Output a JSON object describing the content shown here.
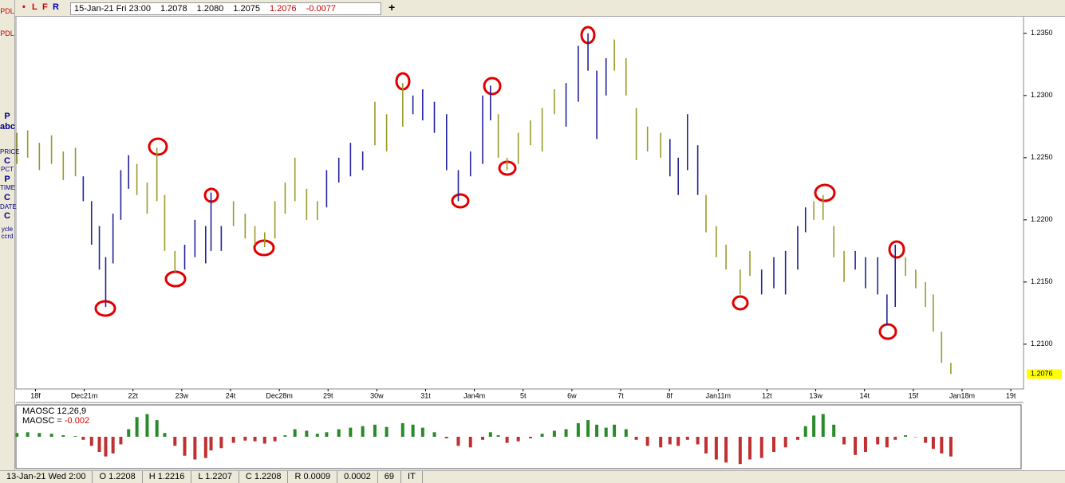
{
  "header": {
    "flags": [
      "L",
      "F",
      "R"
    ],
    "date": "15-Jan-21 Fri 23:00",
    "open": "1.2078",
    "high": "1.2080",
    "low": "1.2075",
    "close": "1.2076",
    "change": "-0.0077",
    "add": "+"
  },
  "toolbar": [
    "PDL",
    "PDL",
    "P",
    "abc",
    "PRICE",
    "C",
    "PCT",
    "P",
    "TIME",
    "C",
    "DATE",
    "C",
    "ycle",
    "ccrd"
  ],
  "status": [
    "13-Jan-21 Wed 2:00",
    "O 1.2208",
    "H 1.2216",
    "L 1.2207",
    "C 1.2208",
    "R 0.0009",
    "0.0002",
    "69",
    "IT"
  ],
  "chart_data": {
    "type": "ohlc",
    "categories": [
      "18f",
      "Dec21m",
      "22t",
      "23w",
      "24t",
      "Dec28m",
      "29t",
      "30w",
      "31t",
      "Jan4m",
      "5t",
      "6w",
      "7t",
      "8f",
      "Jan11m",
      "12t",
      "13w",
      "14t",
      "15f",
      "Jan18m",
      "19t"
    ],
    "xlim": [
      -0.4,
      20.26
    ],
    "ylim": [
      1.2064,
      1.2364
    ],
    "yticks": [
      {
        "value": 1.235,
        "label": "1.2350"
      },
      {
        "value": 1.23,
        "label": "1.2300"
      },
      {
        "value": 1.225,
        "label": "1.2250"
      },
      {
        "value": 1.22,
        "label": "1.2200"
      },
      {
        "value": 1.215,
        "label": "1.2150"
      },
      {
        "value": 1.21,
        "label": "1.2100"
      }
    ],
    "last_price": 1.2076,
    "last_price_color": "#ffff00",
    "x": [
      -0.38,
      -0.16,
      0.08,
      0.33,
      0.57,
      0.82,
      0.98,
      1.15,
      1.31,
      1.44,
      1.59,
      1.75,
      1.91,
      2.08,
      2.29,
      2.49,
      2.65,
      2.86,
      3.06,
      3.27,
      3.49,
      3.6,
      3.81,
      4.06,
      4.3,
      4.5,
      4.7,
      4.91,
      5.12,
      5.32,
      5.56,
      5.78,
      5.97,
      6.22,
      6.46,
      6.71,
      6.96,
      7.2,
      7.53,
      7.74,
      7.94,
      8.18,
      8.43,
      8.67,
      8.92,
      9.17,
      9.33,
      9.49,
      9.67,
      9.9,
      10.15,
      10.39,
      10.64,
      10.88,
      11.13,
      11.33,
      11.51,
      11.7,
      11.87,
      12.11,
      12.32,
      12.55,
      12.82,
      13.01,
      13.18,
      13.37,
      13.58,
      13.75,
      13.96,
      14.16,
      14.45,
      14.65,
      14.89,
      15.14,
      15.38,
      15.63,
      15.79,
      15.96,
      16.15,
      16.37,
      16.58,
      16.81,
      17.02,
      17.27,
      17.46,
      17.63,
      17.84,
      18.05,
      18.25,
      18.41,
      18.58,
      18.77
    ],
    "high": [
      1.227,
      1.2272,
      1.2262,
      1.2268,
      1.2255,
      1.2258,
      1.2235,
      1.2215,
      1.2195,
      1.217,
      1.2205,
      1.224,
      1.2252,
      1.2245,
      1.223,
      1.2258,
      1.222,
      1.2175,
      1.218,
      1.22,
      1.2195,
      1.2222,
      1.2195,
      1.2215,
      1.2205,
      1.2195,
      1.219,
      1.2215,
      1.223,
      1.225,
      1.2225,
      1.2215,
      1.224,
      1.225,
      1.2262,
      1.2255,
      1.2295,
      1.2285,
      1.231,
      1.23,
      1.2305,
      1.2295,
      1.2285,
      1.224,
      1.2255,
      1.23,
      1.2308,
      1.2285,
      1.225,
      1.227,
      1.228,
      1.229,
      1.2305,
      1.231,
      1.234,
      1.235,
      1.232,
      1.233,
      1.2345,
      1.233,
      1.229,
      1.2275,
      1.227,
      1.2265,
      1.225,
      1.2285,
      1.226,
      1.222,
      1.2195,
      1.218,
      1.216,
      1.2175,
      1.216,
      1.217,
      1.2175,
      1.2195,
      1.221,
      1.2215,
      1.222,
      1.2195,
      1.2175,
      1.2175,
      1.217,
      1.217,
      1.214,
      1.218,
      1.217,
      1.216,
      1.215,
      1.214,
      1.211,
      1.2085
    ],
    "low": [
      1.2245,
      1.225,
      1.224,
      1.2245,
      1.2232,
      1.2235,
      1.2215,
      1.218,
      1.216,
      1.213,
      1.2165,
      1.22,
      1.2225,
      1.222,
      1.2205,
      1.2215,
      1.2175,
      1.2158,
      1.216,
      1.217,
      1.2165,
      1.2175,
      1.2175,
      1.2195,
      1.2185,
      1.218,
      1.2178,
      1.2185,
      1.2205,
      1.2215,
      1.22,
      1.22,
      1.221,
      1.223,
      1.2235,
      1.224,
      1.226,
      1.2255,
      1.2275,
      1.2285,
      1.228,
      1.227,
      1.224,
      1.2215,
      1.2235,
      1.2245,
      1.228,
      1.225,
      1.224,
      1.2245,
      1.226,
      1.2255,
      1.2285,
      1.2275,
      1.2295,
      1.232,
      1.2265,
      1.23,
      1.232,
      1.23,
      1.2248,
      1.2255,
      1.225,
      1.2235,
      1.222,
      1.224,
      1.222,
      1.219,
      1.217,
      1.216,
      1.214,
      1.2155,
      1.214,
      1.2145,
      1.214,
      1.216,
      1.219,
      1.22,
      1.22,
      1.217,
      1.215,
      1.216,
      1.2145,
      1.214,
      1.2115,
      1.213,
      1.2155,
      1.2145,
      1.213,
      1.211,
      1.2085,
      1.2076
    ],
    "colors": [
      "#9a9a2a",
      "#9a9a2a",
      "#9a9a2a",
      "#9a9a2a",
      "#9a9a2a",
      "#9a9a2a",
      "#22229a",
      "#22229a",
      "#22229a",
      "#22229a",
      "#22229a",
      "#22229a",
      "#22229a",
      "#9a9a2a",
      "#9a9a2a",
      "#9a9a2a",
      "#9a9a2a",
      "#9a9a2a",
      "#22229a",
      "#22229a",
      "#22229a",
      "#22229a",
      "#22229a",
      "#9a9a2a",
      "#9a9a2a",
      "#9a9a2a",
      "#9a9a2a",
      "#9a9a2a",
      "#9a9a2a",
      "#9a9a2a",
      "#9a9a2a",
      "#9a9a2a",
      "#22229a",
      "#22229a",
      "#22229a",
      "#22229a",
      "#9a9a2a",
      "#9a9a2a",
      "#9a9a2a",
      "#22229a",
      "#22229a",
      "#22229a",
      "#22229a",
      "#22229a",
      "#22229a",
      "#22229a",
      "#22229a",
      "#9a9a2a",
      "#9a9a2a",
      "#9a9a2a",
      "#9a9a2a",
      "#9a9a2a",
      "#9a9a2a",
      "#22229a",
      "#22229a",
      "#22229a",
      "#22229a",
      "#22229a",
      "#9a9a2a",
      "#9a9a2a",
      "#9a9a2a",
      "#9a9a2a",
      "#9a9a2a",
      "#22229a",
      "#22229a",
      "#22229a",
      "#22229a",
      "#9a9a2a",
      "#9a9a2a",
      "#9a9a2a",
      "#9a9a2a",
      "#9a9a2a",
      "#22229a",
      "#22229a",
      "#22229a",
      "#22229a",
      "#22229a",
      "#9a9a2a",
      "#9a9a2a",
      "#9a9a2a",
      "#9a9a2a",
      "#22229a",
      "#22229a",
      "#22229a",
      "#22229a",
      "#22229a",
      "#9a9a2a",
      "#9a9a2a",
      "#9a9a2a",
      "#9a9a2a",
      "#9a9a2a",
      "#9a9a2a"
    ],
    "oscillator": {
      "title": "MAOSC 12,26,9",
      "reading": "MAOSC = ",
      "reading_value": "-0.002",
      "ylim": [
        -0.004,
        0.004
      ],
      "up_color": "#2a8a2a",
      "down_color": "#c03030",
      "values": [
        0.0005,
        0.0006,
        0.0005,
        0.0004,
        0.0002,
        0.0001,
        -0.0004,
        -0.0012,
        -0.002,
        -0.0026,
        -0.0022,
        -0.001,
        0.001,
        0.0026,
        0.003,
        0.0022,
        0.0005,
        -0.0012,
        -0.0025,
        -0.003,
        -0.0028,
        -0.0018,
        -0.0015,
        -0.0008,
        -0.0005,
        -0.0006,
        -0.0009,
        -0.0006,
        0.0002,
        0.001,
        0.0008,
        0.0004,
        0.0006,
        0.001,
        0.0012,
        0.0014,
        0.0016,
        0.0013,
        0.0018,
        0.0016,
        0.0012,
        0.0006,
        -0.0002,
        -0.0012,
        -0.0014,
        -0.0004,
        0.0006,
        0.0002,
        -0.0008,
        -0.0006,
        -0.0002,
        0.0004,
        0.0008,
        0.001,
        0.0018,
        0.0022,
        0.0016,
        0.0012,
        0.0016,
        0.001,
        -0.0004,
        -0.0012,
        -0.0014,
        -0.001,
        -0.0012,
        -0.0004,
        -0.001,
        -0.0022,
        -0.003,
        -0.0034,
        -0.0036,
        -0.003,
        -0.0028,
        -0.002,
        -0.0014,
        -0.0004,
        0.0014,
        0.0028,
        0.003,
        0.0016,
        -0.001,
        -0.0024,
        -0.002,
        -0.001,
        -0.0014,
        -0.0004,
        0.0002,
        0.0,
        -0.0008,
        -0.0016,
        -0.0022,
        -0.0026
      ]
    }
  }
}
